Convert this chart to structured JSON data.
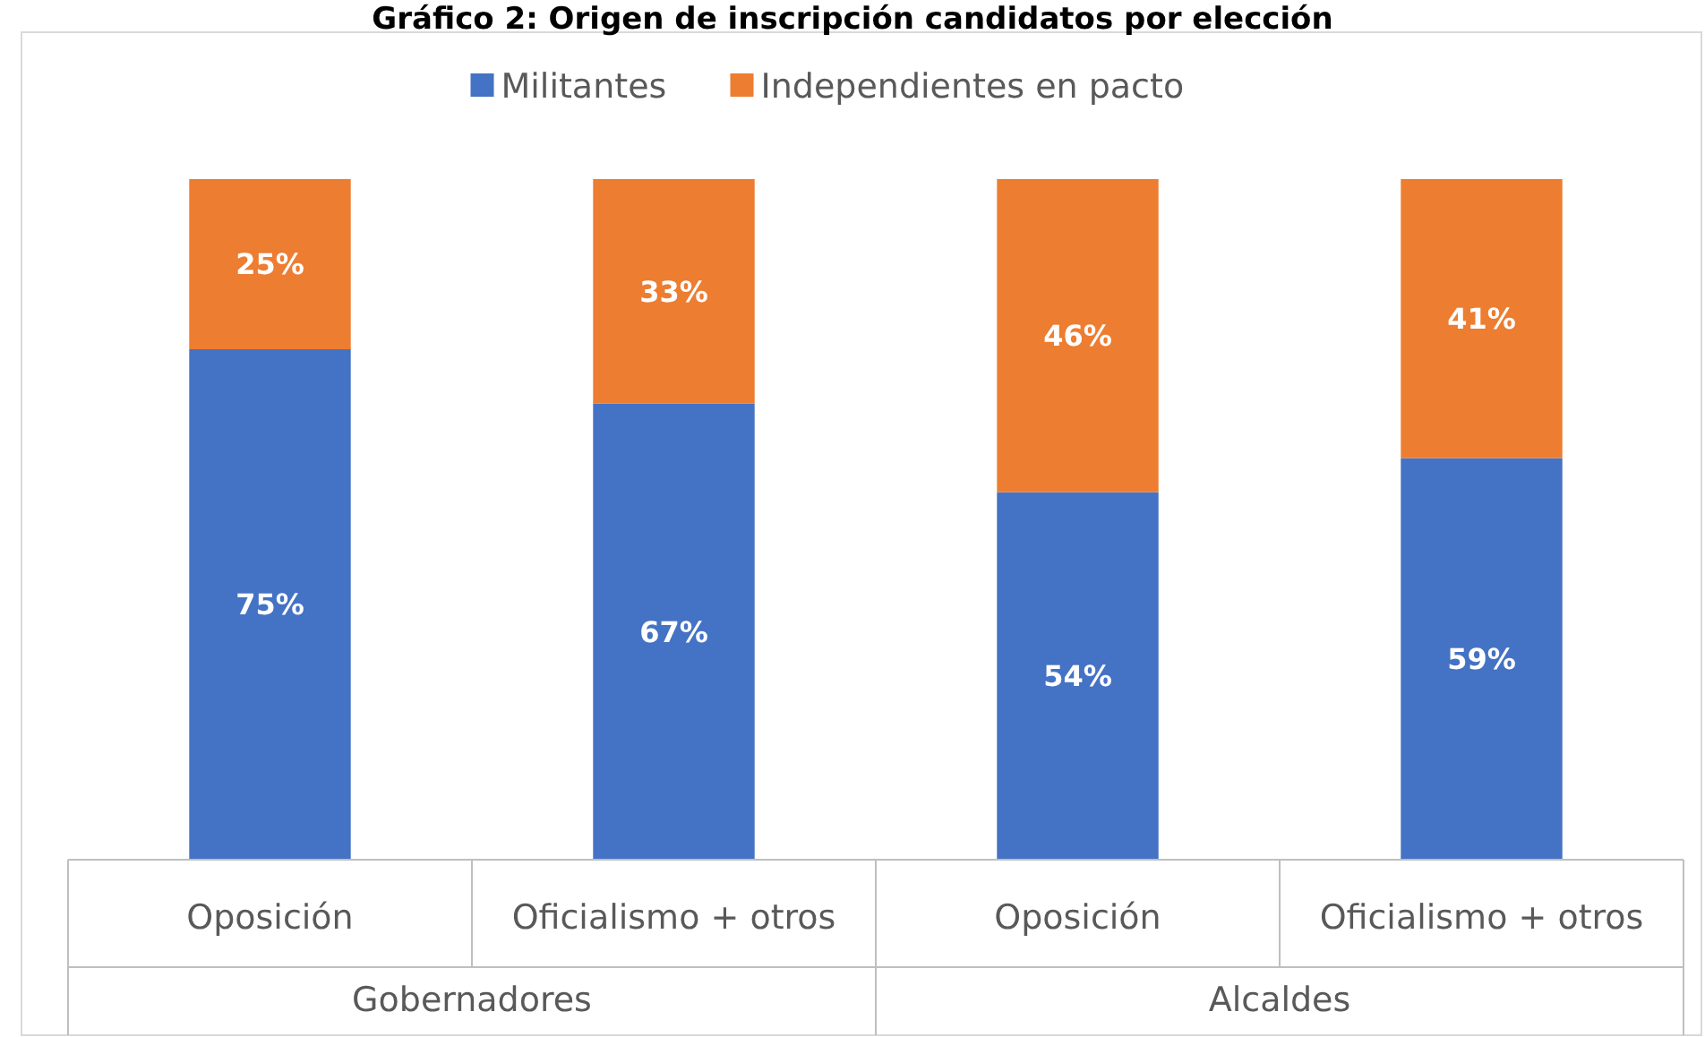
{
  "chart_data": {
    "type": "bar",
    "title": "Gráfico 2: Origen de inscripción candidatos por elección",
    "stacked": true,
    "legend": "top",
    "grid": false,
    "categories": [
      "Oposición",
      "Oficialismo + otros",
      "Oposición",
      "Oficialismo + otros"
    ],
    "series": [
      {
        "name": "Militantes",
        "color": "#4472c4",
        "values": [
          75,
          67,
          54,
          59
        ],
        "value_labels": [
          "75%",
          "67%",
          "54%",
          "59%"
        ]
      },
      {
        "name": "Independientes en pacto",
        "color": "#ed7d31",
        "values": [
          25,
          33,
          46,
          41
        ],
        "value_labels": [
          "25%",
          "33%",
          "46%",
          "41%"
        ]
      }
    ],
    "annotations": [
      "Gobernadores",
      "Alcaldes"
    ]
  }
}
